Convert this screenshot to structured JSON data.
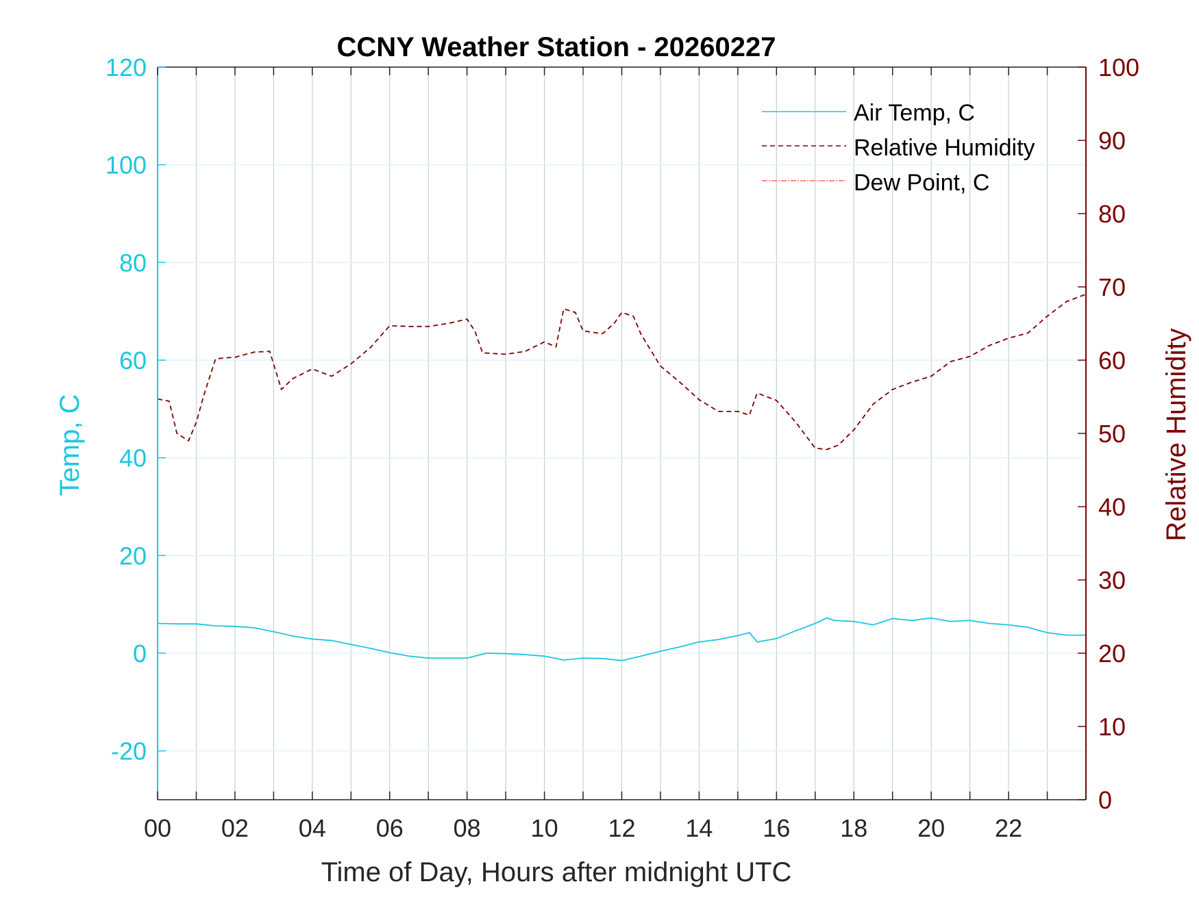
{
  "colors": {
    "background": "#ffffff",
    "left_axis": "#1bc7df",
    "right_axis": "#7a0000",
    "air_temp": "#1bc7df",
    "relative_humidity": "#7a0000",
    "dew_point": "#ff4d2e",
    "grid": "#c8cfd6",
    "frame": "#222222"
  },
  "chart_data": {
    "type": "line",
    "title": "CCNY Weather Station - 20260227",
    "xlabel": "Time of Day, Hours after midnight UTC",
    "ylabel_left": "Temp, C",
    "ylabel_right": "Relative Humidity",
    "xlim": [
      0,
      24
    ],
    "ylim_left": [
      -30,
      120
    ],
    "ylim_right": [
      0,
      100
    ],
    "x_ticks": [
      0,
      2,
      4,
      6,
      8,
      10,
      12,
      14,
      16,
      18,
      20,
      22
    ],
    "x_tick_labels": [
      "00",
      "02",
      "04",
      "06",
      "08",
      "10",
      "12",
      "14",
      "16",
      "18",
      "20",
      "22"
    ],
    "y_left_ticks": [
      -20,
      0,
      20,
      40,
      60,
      80,
      100,
      120
    ],
    "y_left_tick_labels": [
      "-20",
      "0",
      "20",
      "40",
      "60",
      "80",
      "100",
      "120"
    ],
    "y_right_ticks": [
      0,
      10,
      20,
      30,
      40,
      50,
      60,
      70,
      80,
      90,
      100
    ],
    "y_right_tick_labels": [
      "0",
      "10",
      "20",
      "30",
      "40",
      "50",
      "60",
      "70",
      "80",
      "90",
      "100"
    ],
    "grid": true,
    "legend_position": "top-right",
    "legend": [
      "Air Temp, C",
      "Relative Humidity",
      "Dew Point, C"
    ],
    "series": [
      {
        "name": "Air Temp, C",
        "axis": "left",
        "style": "solid",
        "x": [
          0,
          0.5,
          1,
          1.5,
          2,
          2.5,
          3,
          3.5,
          4,
          4.5,
          5,
          5.5,
          6,
          6.5,
          7,
          7.5,
          8,
          8.5,
          9,
          9.5,
          10,
          10.5,
          11,
          11.5,
          12,
          12.5,
          13,
          13.5,
          14,
          14.5,
          15,
          15.3,
          15.5,
          16,
          16.5,
          17,
          17.3,
          17.5,
          18,
          18.5,
          19,
          19.5,
          20,
          20.5,
          21,
          21.5,
          22,
          22.5,
          23,
          23.5,
          24
        ],
        "values": [
          6.1,
          6.0,
          6.0,
          5.6,
          5.5,
          5.2,
          4.4,
          3.5,
          2.9,
          2.6,
          1.8,
          1.0,
          0.1,
          -0.6,
          -1.0,
          -1.0,
          -1.0,
          0.0,
          -0.1,
          -0.3,
          -0.6,
          -1.4,
          -1.0,
          -1.1,
          -1.5,
          -0.6,
          0.4,
          1.3,
          2.3,
          2.8,
          3.6,
          4.2,
          2.3,
          3.0,
          4.6,
          6.1,
          7.2,
          6.7,
          6.5,
          5.8,
          7.1,
          6.7,
          7.2,
          6.5,
          6.7,
          6.1,
          5.8,
          5.3,
          4.2,
          3.7,
          3.7
        ]
      },
      {
        "name": "Relative Humidity",
        "axis": "right",
        "style": "dashed",
        "x": [
          0,
          0.3,
          0.5,
          0.8,
          1.0,
          1.2,
          1.5,
          2.0,
          2.5,
          2.9,
          3.2,
          3.5,
          4.0,
          4.5,
          5.0,
          5.5,
          6.0,
          6.5,
          7.0,
          7.5,
          8.0,
          8.2,
          8.4,
          9.0,
          9.5,
          10.0,
          10.3,
          10.5,
          10.8,
          11.0,
          11.5,
          11.8,
          12.0,
          12.3,
          12.5,
          13.0,
          13.5,
          14.0,
          14.5,
          15.0,
          15.3,
          15.5,
          16.0,
          16.5,
          17.0,
          17.3,
          17.6,
          18.0,
          18.5,
          19.0,
          19.5,
          20.0,
          20.5,
          21.0,
          21.5,
          22.0,
          22.5,
          23.0,
          23.5,
          24.0
        ],
        "values": [
          54.7,
          54.4,
          50.0,
          49.0,
          51.5,
          55.3,
          60.2,
          60.4,
          61.1,
          61.2,
          56.0,
          57.5,
          58.8,
          57.8,
          59.5,
          61.7,
          64.7,
          64.6,
          64.6,
          65.0,
          65.6,
          64.0,
          61.0,
          60.8,
          61.2,
          62.5,
          61.8,
          67.0,
          66.5,
          64.0,
          63.6,
          65.0,
          66.5,
          66.0,
          63.5,
          59.2,
          57.0,
          54.6,
          53.0,
          53.0,
          52.5,
          55.5,
          54.5,
          51.5,
          48.0,
          47.8,
          48.4,
          50.5,
          54.0,
          56.0,
          57.0,
          57.8,
          59.8,
          60.5,
          62.0,
          63.0,
          63.7,
          66.0,
          68.0,
          69.0
        ]
      },
      {
        "name": "Dew Point, C",
        "axis": "left",
        "style": "dash-dot",
        "x": [],
        "values": []
      }
    ]
  }
}
